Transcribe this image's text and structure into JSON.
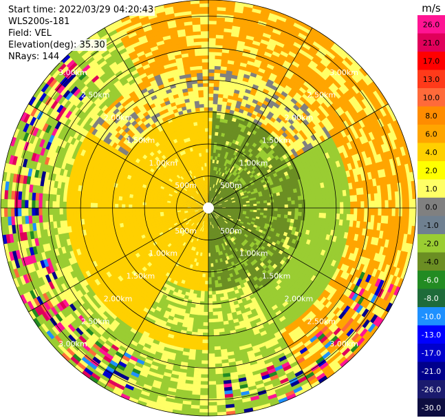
{
  "info": {
    "start_time": "Start time: 2022/03/29 04:20:43",
    "station": "WLS200s-181",
    "field": "Field: VEL",
    "elevation": "Elevation(deg): 35.30",
    "nrays": "NRays: 144"
  },
  "chart_data": {
    "type": "heatmap",
    "projection": "polar PPI",
    "field": "VEL",
    "unit": "m/s",
    "nrays": 144,
    "elevation_deg": 35.3,
    "range_rings": [
      {
        "label": "500m",
        "km": 0.5
      },
      {
        "label": "1.00km",
        "km": 1.0
      },
      {
        "label": "1.50km",
        "km": 1.5
      },
      {
        "label": "2.00km",
        "km": 2.0
      },
      {
        "label": "2.50km",
        "km": 2.5
      },
      {
        "label": "3.00km",
        "km": 3.0
      }
    ],
    "max_range_km": 3.25,
    "azimuth_lines_deg": [
      0,
      30,
      60,
      90,
      120,
      150,
      180,
      210,
      240,
      270,
      300,
      330
    ],
    "colorbar": {
      "labels": [
        "26.0",
        "21.0",
        "17.0",
        "13.0",
        "10.0",
        "8.0",
        "6.0",
        "4.0",
        "2.0",
        "1.0",
        "0.0",
        "-1.0",
        "-2.0",
        "-4.0",
        "-6.0",
        "-8.0",
        "-10.0",
        "-13.0",
        "-17.0",
        "-21.0",
        "-26.0",
        "-30.0"
      ],
      "colors": [
        "#ff1493",
        "#e0005a",
        "#ff0000",
        "#ff3a1a",
        "#ff6a3a",
        "#ff8c00",
        "#ffa500",
        "#ffd000",
        "#ffff00",
        "#ffff66",
        "#808080",
        "#6f8090",
        "#9acd32",
        "#6b8e23",
        "#228b22",
        "#1e6b3a",
        "#1e90ff",
        "#0000ff",
        "#0000cd",
        "#00008b",
        "#1a1a6e",
        "#0d0d40"
      ]
    },
    "sectors": [
      {
        "az_from": 300,
        "az_to": 60,
        "near_km": 1.5,
        "value": 4.0
      },
      {
        "az_from": 60,
        "az_to": 150,
        "near_km": 2.2,
        "value": 4.0
      },
      {
        "az_from": 0,
        "az_to": 180,
        "near_km": 0.0,
        "value": -2.0
      },
      {
        "az_from": 180,
        "az_to": 360,
        "near_km": 0.0,
        "value": 2.0
      },
      {
        "az_from": 150,
        "az_to": 330,
        "near_km": 2.2,
        "value": -2.0
      }
    ]
  }
}
